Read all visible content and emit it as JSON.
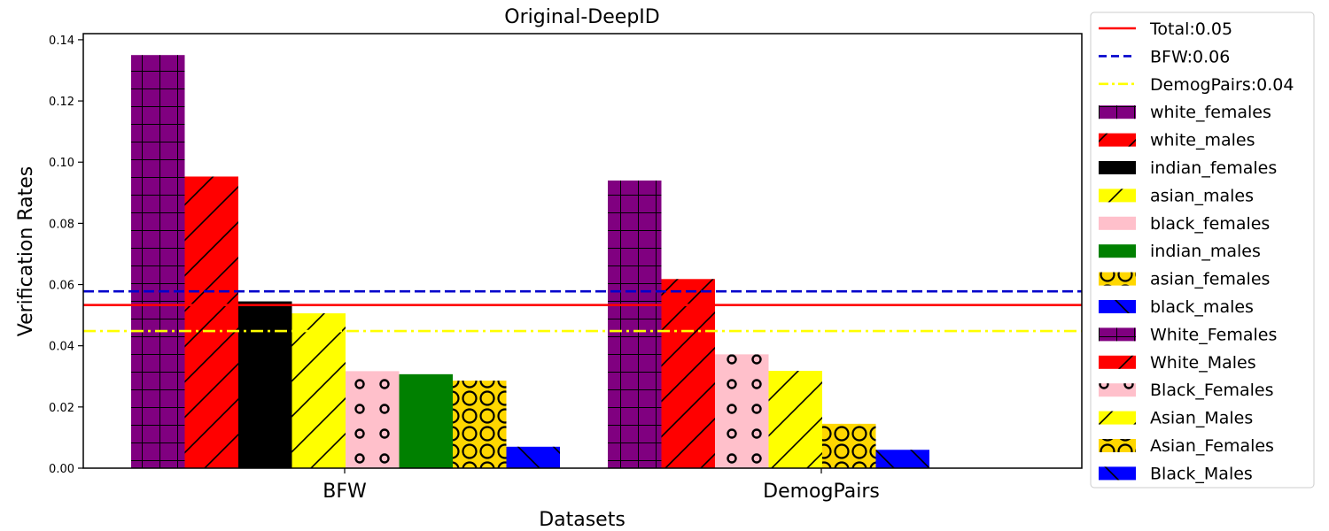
{
  "chart_data": {
    "type": "bar",
    "title": "Original-DeepID",
    "xlabel": "Datasets",
    "ylabel": "Verification Rates",
    "ylim": [
      0,
      0.142
    ],
    "yticks": [
      "0.00",
      "0.02",
      "0.04",
      "0.06",
      "0.08",
      "0.10",
      "0.12",
      "0.14"
    ],
    "grid": false,
    "legend_position": "right-outside",
    "groups": [
      {
        "category": "BFW",
        "bars": [
          {
            "series": "white_females",
            "value": 0.135
          },
          {
            "series": "white_males",
            "value": 0.0953
          },
          {
            "series": "indian_females",
            "value": 0.0545
          },
          {
            "series": "asian_males",
            "value": 0.0506
          },
          {
            "series": "black_females",
            "value": 0.0317
          },
          {
            "series": "indian_males",
            "value": 0.0307
          },
          {
            "series": "asian_females",
            "value": 0.0286
          },
          {
            "series": "black_males",
            "value": 0.007
          }
        ]
      },
      {
        "category": "DemogPairs",
        "bars": [
          {
            "series": "White_Females",
            "value": 0.094
          },
          {
            "series": "White_Males",
            "value": 0.0618
          },
          {
            "series": "Black_Females",
            "value": 0.0372
          },
          {
            "series": "Asian_Males",
            "value": 0.0318
          },
          {
            "series": "Asian_Females",
            "value": 0.0145
          },
          {
            "series": "Black_Males",
            "value": 0.006
          }
        ]
      }
    ],
    "reference_lines": [
      {
        "label": "Total:0.05",
        "value": 0.0533,
        "color": "#ff0000",
        "style": "solid"
      },
      {
        "label": "BFW:0.06",
        "value": 0.0578,
        "color": "#0000cc",
        "style": "dashed"
      },
      {
        "label": "DemogPairs:0.04",
        "value": 0.0448,
        "color": "#ffff00",
        "style": "dashdot"
      }
    ],
    "series_styles": [
      {
        "name": "white_females",
        "color": "#800080",
        "hatch": "grid"
      },
      {
        "name": "white_males",
        "color": "#ff0000",
        "hatch": "diag"
      },
      {
        "name": "indian_females",
        "color": "#000000",
        "hatch": "none"
      },
      {
        "name": "asian_males",
        "color": "#ffff00",
        "hatch": "diag"
      },
      {
        "name": "black_females",
        "color": "#ffc0cb",
        "hatch": "circles"
      },
      {
        "name": "indian_males",
        "color": "#008000",
        "hatch": "none"
      },
      {
        "name": "asian_females",
        "color": "#ffd700",
        "hatch": "bigcircles"
      },
      {
        "name": "black_males",
        "color": "#0000ff",
        "hatch": "backdiag"
      },
      {
        "name": "White_Females",
        "color": "#800080",
        "hatch": "grid"
      },
      {
        "name": "White_Males",
        "color": "#ff0000",
        "hatch": "diag"
      },
      {
        "name": "Black_Females",
        "color": "#ffc0cb",
        "hatch": "circles"
      },
      {
        "name": "Asian_Males",
        "color": "#ffff00",
        "hatch": "diag"
      },
      {
        "name": "Asian_Females",
        "color": "#ffd700",
        "hatch": "bigcircles"
      },
      {
        "name": "Black_Males",
        "color": "#0000ff",
        "hatch": "backdiag"
      }
    ]
  }
}
